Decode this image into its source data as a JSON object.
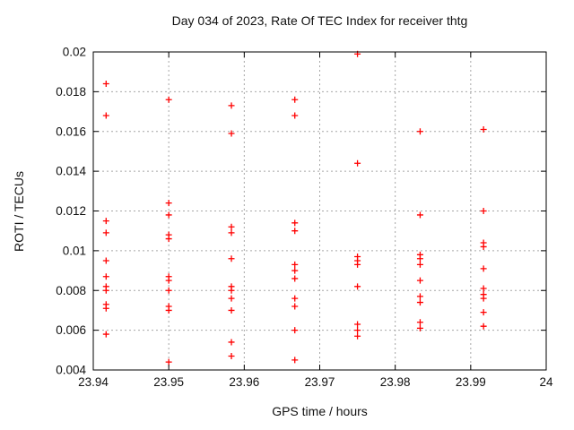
{
  "colors": {
    "background": "#ffffff",
    "axis": "#000000",
    "grid": "#a6a6a6",
    "marker": "#ff0000",
    "text": "#111111"
  },
  "chart_data": {
    "type": "scatter",
    "title": "Day 034 of 2023, Rate Of TEC Index for receiver thtg",
    "xlabel": "GPS time / hours",
    "ylabel": "ROTI / TECUs",
    "xlim": [
      23.94,
      24
    ],
    "ylim": [
      0.004,
      0.02
    ],
    "xticks": [
      23.94,
      23.95,
      23.96,
      23.97,
      23.98,
      23.99,
      24
    ],
    "xtick_labels": [
      "23.94",
      "23.95",
      "23.96",
      "23.97",
      "23.98",
      "23.99",
      "24"
    ],
    "yticks": [
      0.004,
      0.006,
      0.008,
      0.01,
      0.012,
      0.014,
      0.016,
      0.018,
      0.02
    ],
    "ytick_labels": [
      "0.004",
      "0.006",
      "0.008",
      "0.01",
      "0.012",
      "0.014",
      "0.016",
      "0.018",
      "0.02"
    ],
    "grid": "dashed",
    "legend_position": "none",
    "marker": "plus",
    "n_points": 73,
    "series": [
      {
        "name": "ROTI",
        "color": "#ff0000",
        "points": [
          [
            23.9417,
            0.0184
          ],
          [
            23.9417,
            0.0168
          ],
          [
            23.9417,
            0.0115
          ],
          [
            23.9417,
            0.0109
          ],
          [
            23.9417,
            0.0095
          ],
          [
            23.9417,
            0.0087
          ],
          [
            23.9417,
            0.0082
          ],
          [
            23.9417,
            0.008
          ],
          [
            23.9417,
            0.0073
          ],
          [
            23.9417,
            0.0071
          ],
          [
            23.9417,
            0.0058
          ],
          [
            23.95,
            0.0176
          ],
          [
            23.95,
            0.0124
          ],
          [
            23.95,
            0.0118
          ],
          [
            23.95,
            0.0108
          ],
          [
            23.95,
            0.0106
          ],
          [
            23.95,
            0.0087
          ],
          [
            23.95,
            0.0085
          ],
          [
            23.95,
            0.008
          ],
          [
            23.95,
            0.0072
          ],
          [
            23.95,
            0.007
          ],
          [
            23.95,
            0.0044
          ],
          [
            23.9583,
            0.0173
          ],
          [
            23.9583,
            0.0159
          ],
          [
            23.9583,
            0.0112
          ],
          [
            23.9583,
            0.0109
          ],
          [
            23.9583,
            0.0096
          ],
          [
            23.9583,
            0.0082
          ],
          [
            23.9583,
            0.008
          ],
          [
            23.9583,
            0.0076
          ],
          [
            23.9583,
            0.007
          ],
          [
            23.9583,
            0.0054
          ],
          [
            23.9583,
            0.0047
          ],
          [
            23.9667,
            0.0176
          ],
          [
            23.9667,
            0.0168
          ],
          [
            23.9667,
            0.0114
          ],
          [
            23.9667,
            0.011
          ],
          [
            23.9667,
            0.0093
          ],
          [
            23.9667,
            0.009
          ],
          [
            23.9667,
            0.0086
          ],
          [
            23.9667,
            0.0076
          ],
          [
            23.9667,
            0.0072
          ],
          [
            23.9667,
            0.006
          ],
          [
            23.9667,
            0.0045
          ],
          [
            23.975,
            0.0199
          ],
          [
            23.975,
            0.0144
          ],
          [
            23.975,
            0.0097
          ],
          [
            23.975,
            0.0095
          ],
          [
            23.975,
            0.0093
          ],
          [
            23.975,
            0.0082
          ],
          [
            23.975,
            0.0063
          ],
          [
            23.975,
            0.006
          ],
          [
            23.975,
            0.0057
          ],
          [
            23.9833,
            0.016
          ],
          [
            23.9833,
            0.0118
          ],
          [
            23.9833,
            0.0098
          ],
          [
            23.9833,
            0.0096
          ],
          [
            23.9833,
            0.0093
          ],
          [
            23.9833,
            0.0085
          ],
          [
            23.9833,
            0.0077
          ],
          [
            23.9833,
            0.0074
          ],
          [
            23.9833,
            0.0064
          ],
          [
            23.9833,
            0.0061
          ],
          [
            23.9917,
            0.0161
          ],
          [
            23.9917,
            0.012
          ],
          [
            23.9917,
            0.0104
          ],
          [
            23.9917,
            0.0102
          ],
          [
            23.9917,
            0.0091
          ],
          [
            23.9917,
            0.0081
          ],
          [
            23.9917,
            0.0078
          ],
          [
            23.9917,
            0.0076
          ],
          [
            23.9917,
            0.0069
          ],
          [
            23.9917,
            0.0062
          ]
        ]
      }
    ]
  }
}
